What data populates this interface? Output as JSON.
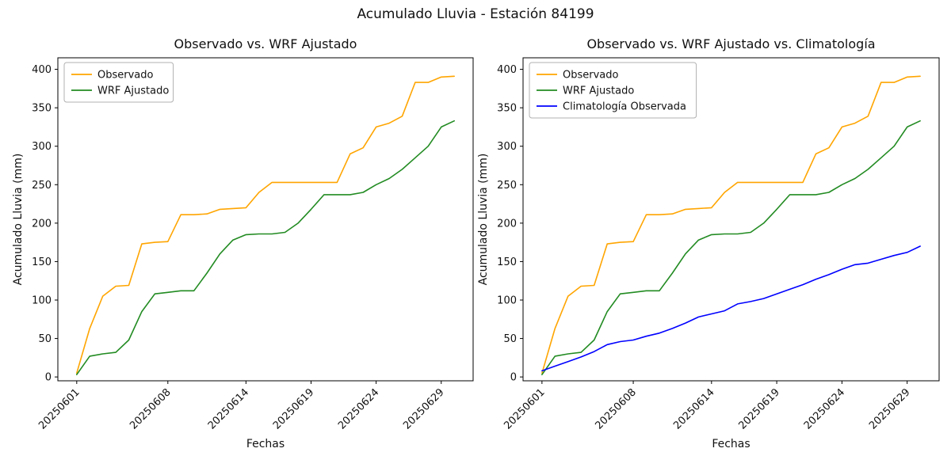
{
  "figure": {
    "title": "Acumulado Lluvia - Estación 84199"
  },
  "chart_data": [
    {
      "type": "line",
      "title": "Observado vs. WRF Ajustado",
      "xlabel": "Fechas",
      "ylabel": "Acumulado Lluvia (mm)",
      "x": [
        1,
        2,
        3,
        4,
        5,
        6,
        7,
        8,
        9,
        10,
        11,
        12,
        13,
        14,
        15,
        16,
        17,
        18,
        19,
        20,
        21,
        22,
        23,
        24,
        25,
        26,
        27,
        28,
        29,
        30
      ],
      "xlim": [
        -0.45,
        31.45
      ],
      "ylim": [
        -5,
        415
      ],
      "y_ticks": [
        0,
        50,
        100,
        150,
        200,
        250,
        300,
        350,
        400
      ],
      "x_tick_positions": [
        1,
        8,
        14,
        19,
        24,
        29
      ],
      "x_tick_labels": [
        "20250601",
        "20250608",
        "20250614",
        "20250619",
        "20250624",
        "20250629"
      ],
      "grid": false,
      "legend_position": "upper-left",
      "series": [
        {
          "name": "Observado",
          "color": "#FFA500",
          "values": [
            5,
            63,
            105,
            118,
            119,
            173,
            175,
            176,
            211,
            211,
            212,
            218,
            219,
            220,
            240,
            253,
            253,
            253,
            253,
            253,
            253,
            290,
            298,
            325,
            330,
            339,
            383,
            383,
            390,
            391
          ]
        },
        {
          "name": "WRF Ajustado",
          "color": "#228B22",
          "values": [
            3,
            27,
            30,
            32,
            48,
            85,
            108,
            110,
            112,
            112,
            135,
            160,
            178,
            185,
            186,
            186,
            188,
            200,
            218,
            237,
            237,
            237,
            240,
            250,
            258,
            270,
            285,
            300,
            325,
            333
          ]
        }
      ]
    },
    {
      "type": "line",
      "title": "Observado vs. WRF Ajustado vs. Climatología",
      "xlabel": "Fechas",
      "ylabel": "Acumulado Lluvia (mm)",
      "x": [
        1,
        2,
        3,
        4,
        5,
        6,
        7,
        8,
        9,
        10,
        11,
        12,
        13,
        14,
        15,
        16,
        17,
        18,
        19,
        20,
        21,
        22,
        23,
        24,
        25,
        26,
        27,
        28,
        29,
        30
      ],
      "xlim": [
        -0.45,
        31.45
      ],
      "ylim": [
        -5,
        415
      ],
      "y_ticks": [
        0,
        50,
        100,
        150,
        200,
        250,
        300,
        350,
        400
      ],
      "x_tick_positions": [
        1,
        8,
        14,
        19,
        24,
        29
      ],
      "x_tick_labels": [
        "20250601",
        "20250608",
        "20250614",
        "20250619",
        "20250624",
        "20250629"
      ],
      "grid": false,
      "legend_position": "upper-left",
      "series": [
        {
          "name": "Observado",
          "color": "#FFA500",
          "values": [
            5,
            63,
            105,
            118,
            119,
            173,
            175,
            176,
            211,
            211,
            212,
            218,
            219,
            220,
            240,
            253,
            253,
            253,
            253,
            253,
            253,
            290,
            298,
            325,
            330,
            339,
            383,
            383,
            390,
            391
          ]
        },
        {
          "name": "WRF Ajustado",
          "color": "#228B22",
          "values": [
            3,
            27,
            30,
            32,
            48,
            85,
            108,
            110,
            112,
            112,
            135,
            160,
            178,
            185,
            186,
            186,
            188,
            200,
            218,
            237,
            237,
            237,
            240,
            250,
            258,
            270,
            285,
            300,
            325,
            333
          ]
        },
        {
          "name": "Climatología Observada",
          "color": "#0000FF",
          "values": [
            8,
            14,
            20,
            26,
            33,
            42,
            46,
            48,
            53,
            57,
            63,
            70,
            78,
            82,
            86,
            95,
            98,
            102,
            108,
            114,
            120,
            127,
            133,
            140,
            146,
            148,
            153,
            158,
            162,
            170
          ]
        }
      ]
    }
  ]
}
